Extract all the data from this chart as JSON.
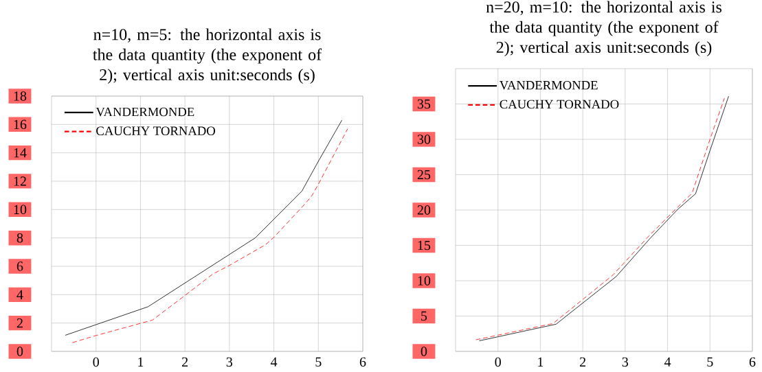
{
  "chart_data": [
    {
      "type": "line",
      "title": "n=10, m=5: the horizontal axis is the data quantity (the exponent of 2); vertical axis unit:seconds (s)",
      "xlim": [
        -1,
        6
      ],
      "xticks": [
        0,
        1,
        2,
        3,
        4,
        5,
        6
      ],
      "ylim": [
        0,
        18
      ],
      "yticks": [
        0,
        2,
        4,
        6,
        8,
        10,
        12,
        14,
        16,
        18
      ],
      "grid": true,
      "legend": "top left",
      "series": [
        {
          "name": "VANDERMONDE",
          "color": "#000000",
          "line_style": "solid",
          "x": [
            -0.69,
            1.17,
            3.58,
            4.63,
            5.0,
            5.53
          ],
          "values": [
            1.14,
            3.15,
            8.0,
            11.3,
            13.4,
            16.3
          ]
        },
        {
          "name": "CAUCHY TORNADO",
          "color": "#ff0000",
          "line_style": "dashed",
          "x": [
            -0.53,
            0,
            1.27,
            2.0,
            2.62,
            3.0,
            3.82,
            4.0,
            4.7,
            4.86,
            5.02,
            5.66
          ],
          "values": [
            0.62,
            1.12,
            2.21,
            3.94,
            5.44,
            6.06,
            7.54,
            8.04,
            10.4,
            11.0,
            11.9,
            15.7
          ]
        }
      ]
    },
    {
      "type": "line",
      "title": "n=20, m=10: the horizontal axis is the data quantity (the exponent of 2); vertical axis unit:seconds (s)",
      "xlim": [
        -1,
        6
      ],
      "xticks": [
        0,
        1,
        2,
        3,
        4,
        5,
        6
      ],
      "ylim": [
        0,
        40
      ],
      "yticks": [
        0,
        5,
        10,
        15,
        20,
        25,
        30,
        35
      ],
      "grid": true,
      "legend": "top left",
      "series": [
        {
          "name": "VANDERMONDE",
          "color": "#000000",
          "line_style": "solid",
          "x": [
            -0.44,
            1.37,
            2.79,
            3.59,
            4.24,
            4.66,
            5.0,
            5.44
          ],
          "values": [
            1.5,
            3.85,
            10.6,
            16.0,
            20.1,
            22.3,
            28.4,
            36.1
          ]
        },
        {
          "name": "CAUCHY TORNADO",
          "color": "#ff0000",
          "line_style": "dashed",
          "x": [
            -0.52,
            1.3,
            2.71,
            3.54,
            4.17,
            4.58,
            5.0,
            5.34
          ],
          "values": [
            1.64,
            3.95,
            10.8,
            16.2,
            20.0,
            22.4,
            30.0,
            35.8
          ]
        }
      ]
    }
  ]
}
